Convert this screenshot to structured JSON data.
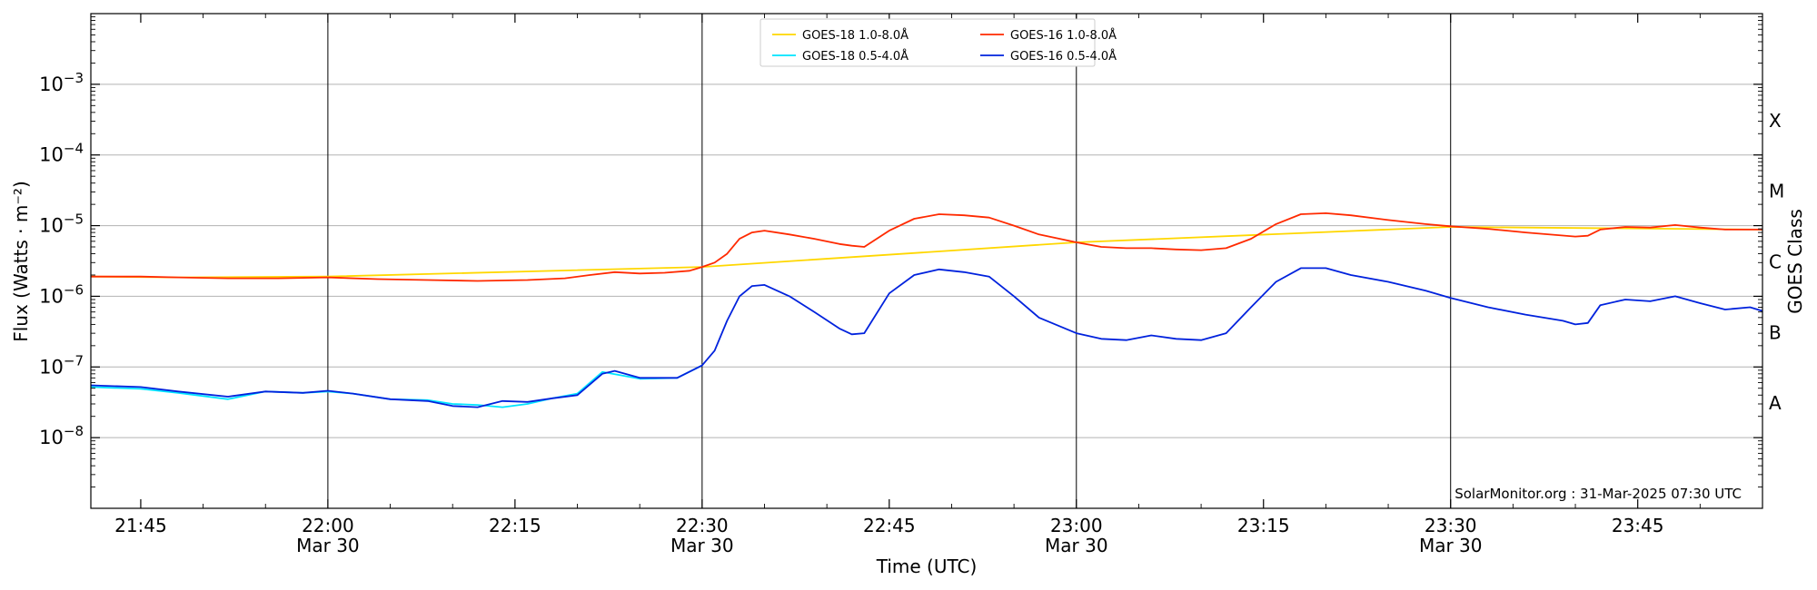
{
  "chart_data": {
    "type": "line",
    "xlabel": "Time (UTC)",
    "ylabel": "Flux (Watts · m⁻²)",
    "ylabel_right": "GOES Class",
    "y_scale": "log",
    "ylim": [
      1e-09,
      0.01
    ],
    "xlim": [
      "2025-03-30 21:41",
      "2025-03-30 23:55"
    ],
    "grid": "horizontal at decades",
    "legend_position": "top-center",
    "yticks": [
      {
        "value": 1e-08,
        "base": "10",
        "exp": "−8"
      },
      {
        "value": 1e-07,
        "base": "10",
        "exp": "−7"
      },
      {
        "value": 1e-06,
        "base": "10",
        "exp": "−6"
      },
      {
        "value": 1e-05,
        "base": "10",
        "exp": "−5"
      },
      {
        "value": 0.0001,
        "base": "10",
        "exp": "−4"
      },
      {
        "value": 0.001,
        "base": "10",
        "exp": "−3"
      }
    ],
    "xticks": [
      {
        "time": "21:45",
        "label": "21:45",
        "date": ""
      },
      {
        "time": "22:00",
        "label": "22:00",
        "date": "Mar 30"
      },
      {
        "time": "22:15",
        "label": "22:15",
        "date": ""
      },
      {
        "time": "22:30",
        "label": "22:30",
        "date": "Mar 30"
      },
      {
        "time": "22:45",
        "label": "22:45",
        "date": ""
      },
      {
        "time": "23:00",
        "label": "23:00",
        "date": "Mar 30"
      },
      {
        "time": "23:15",
        "label": "23:15",
        "date": ""
      },
      {
        "time": "23:30",
        "label": "23:30",
        "date": "Mar 30"
      },
      {
        "time": "23:45",
        "label": "23:45",
        "date": ""
      }
    ],
    "vertical_lines": [
      "22:00",
      "22:30",
      "23:00",
      "23:30"
    ],
    "goes_classes": [
      {
        "label": "A",
        "low": 1e-08,
        "high": 1e-07
      },
      {
        "label": "B",
        "low": 1e-07,
        "high": 1e-06
      },
      {
        "label": "C",
        "low": 1e-06,
        "high": 1e-05
      },
      {
        "label": "M",
        "low": 1e-05,
        "high": 0.0001
      },
      {
        "label": "X",
        "low": 0.0001,
        "high": 0.001
      }
    ],
    "annotation": "SolarMonitor.org : 31-Mar-2025 07:30 UTC",
    "series": [
      {
        "name": "GOES-18 1.0-8.0Å",
        "color": "#ffd700",
        "x": [
          "21:41",
          "21:48",
          "22:00",
          "22:30",
          "23:00",
          "23:30",
          "23:55"
        ],
        "y": [
          1.9e-06,
          1.85e-06,
          1.9e-06,
          2.6e-06,
          5.8e-06,
          9.6e-06,
          8.8e-06
        ]
      },
      {
        "name": "GOES-18 0.5-4.0Å",
        "color": "#00e5ff",
        "x": [
          "21:41",
          "21:45",
          "21:48",
          "21:52",
          "21:55",
          "21:58",
          "22:00",
          "22:02",
          "22:05",
          "22:08",
          "22:10",
          "22:12",
          "22:14",
          "22:16",
          "22:18",
          "22:20",
          "22:22",
          "22:25",
          "22:28",
          "22:30"
        ],
        "y": [
          5.2e-08,
          4.9e-08,
          4.3e-08,
          3.5e-08,
          4.5e-08,
          4.3e-08,
          4.5e-08,
          4.2e-08,
          3.5e-08,
          3.4e-08,
          3e-08,
          2.9e-08,
          2.7e-08,
          3e-08,
          3.6e-08,
          4.2e-08,
          8.5e-08,
          6.8e-08,
          7e-08,
          1.05e-07
        ]
      },
      {
        "name": "GOES-16 1.0-8.0Å",
        "color": "#ff2a00",
        "x": [
          "21:41",
          "21:45",
          "21:48",
          "21:52",
          "21:56",
          "22:00",
          "22:04",
          "22:08",
          "22:12",
          "22:16",
          "22:19",
          "22:21",
          "22:23",
          "22:25",
          "22:27",
          "22:29",
          "22:30",
          "22:31",
          "22:32",
          "22:33",
          "22:34",
          "22:35",
          "22:37",
          "22:39",
          "22:41",
          "22:42",
          "22:43",
          "22:45",
          "22:47",
          "22:49",
          "22:51",
          "22:53",
          "22:55",
          "22:57",
          "23:00",
          "23:02",
          "23:04",
          "23:06",
          "23:08",
          "23:10",
          "23:12",
          "23:14",
          "23:16",
          "23:18",
          "23:20",
          "23:22",
          "23:25",
          "23:28",
          "23:30",
          "23:33",
          "23:36",
          "23:40",
          "23:41",
          "23:42",
          "23:44",
          "23:46",
          "23:48",
          "23:50",
          "23:52",
          "23:55"
        ],
        "y": [
          1.9e-06,
          1.9e-06,
          1.85e-06,
          1.8e-06,
          1.8e-06,
          1.85e-06,
          1.75e-06,
          1.7e-06,
          1.65e-06,
          1.7e-06,
          1.8e-06,
          2e-06,
          2.2e-06,
          2.1e-06,
          2.15e-06,
          2.3e-06,
          2.6e-06,
          3e-06,
          4e-06,
          6.5e-06,
          8e-06,
          8.5e-06,
          7.5e-06,
          6.5e-06,
          5.5e-06,
          5.2e-06,
          5e-06,
          8.5e-06,
          1.25e-05,
          1.45e-05,
          1.4e-05,
          1.3e-05,
          1e-05,
          7.5e-06,
          5.8e-06,
          5e-06,
          4.8e-06,
          4.8e-06,
          4.6e-06,
          4.5e-06,
          4.8e-06,
          6.5e-06,
          1.05e-05,
          1.45e-05,
          1.5e-05,
          1.4e-05,
          1.2e-05,
          1.05e-05,
          9.8e-06,
          9e-06,
          8e-06,
          7e-06,
          7.2e-06,
          8.8e-06,
          9.6e-06,
          9.4e-06,
          1.02e-05,
          9.4e-06,
          8.8e-06,
          8.8e-06
        ]
      },
      {
        "name": "GOES-16 0.5-4.0Å",
        "color": "#0022dd",
        "x": [
          "21:41",
          "21:45",
          "21:48",
          "21:52",
          "21:55",
          "21:58",
          "22:00",
          "22:02",
          "22:05",
          "22:08",
          "22:10",
          "22:12",
          "22:14",
          "22:16",
          "22:18",
          "22:20",
          "22:22",
          "22:23",
          "22:25",
          "22:28",
          "22:30",
          "22:31",
          "22:32",
          "22:33",
          "22:34",
          "22:35",
          "22:37",
          "22:39",
          "22:41",
          "22:42",
          "22:43",
          "22:45",
          "22:47",
          "22:49",
          "22:51",
          "22:53",
          "22:55",
          "22:57",
          "23:00",
          "23:02",
          "23:04",
          "23:06",
          "23:08",
          "23:10",
          "23:12",
          "23:14",
          "23:16",
          "23:18",
          "23:20",
          "23:22",
          "23:25",
          "23:28",
          "23:30",
          "23:33",
          "23:36",
          "23:39",
          "23:40",
          "23:41",
          "23:42",
          "23:44",
          "23:46",
          "23:48",
          "23:50",
          "23:52",
          "23:54",
          "23:55"
        ],
        "y": [
          5.5e-08,
          5.2e-08,
          4.5e-08,
          3.8e-08,
          4.5e-08,
          4.3e-08,
          4.6e-08,
          4.2e-08,
          3.5e-08,
          3.3e-08,
          2.8e-08,
          2.7e-08,
          3.3e-08,
          3.2e-08,
          3.6e-08,
          4e-08,
          8e-08,
          8.8e-08,
          7e-08,
          7e-08,
          1.05e-07,
          1.7e-07,
          4.5e-07,
          1e-06,
          1.4e-06,
          1.45e-06,
          1e-06,
          6e-07,
          3.5e-07,
          2.9e-07,
          3e-07,
          1.1e-06,
          2e-06,
          2.4e-06,
          2.2e-06,
          1.9e-06,
          1e-06,
          5e-07,
          3e-07,
          2.5e-07,
          2.4e-07,
          2.8e-07,
          2.5e-07,
          2.4e-07,
          3e-07,
          7e-07,
          1.6e-06,
          2.5e-06,
          2.5e-06,
          2e-06,
          1.6e-06,
          1.2e-06,
          9.5e-07,
          7e-07,
          5.5e-07,
          4.5e-07,
          4e-07,
          4.2e-07,
          7.5e-07,
          9e-07,
          8.5e-07,
          1e-06,
          8e-07,
          6.5e-07,
          7e-07,
          6.2e-07
        ]
      }
    ]
  }
}
